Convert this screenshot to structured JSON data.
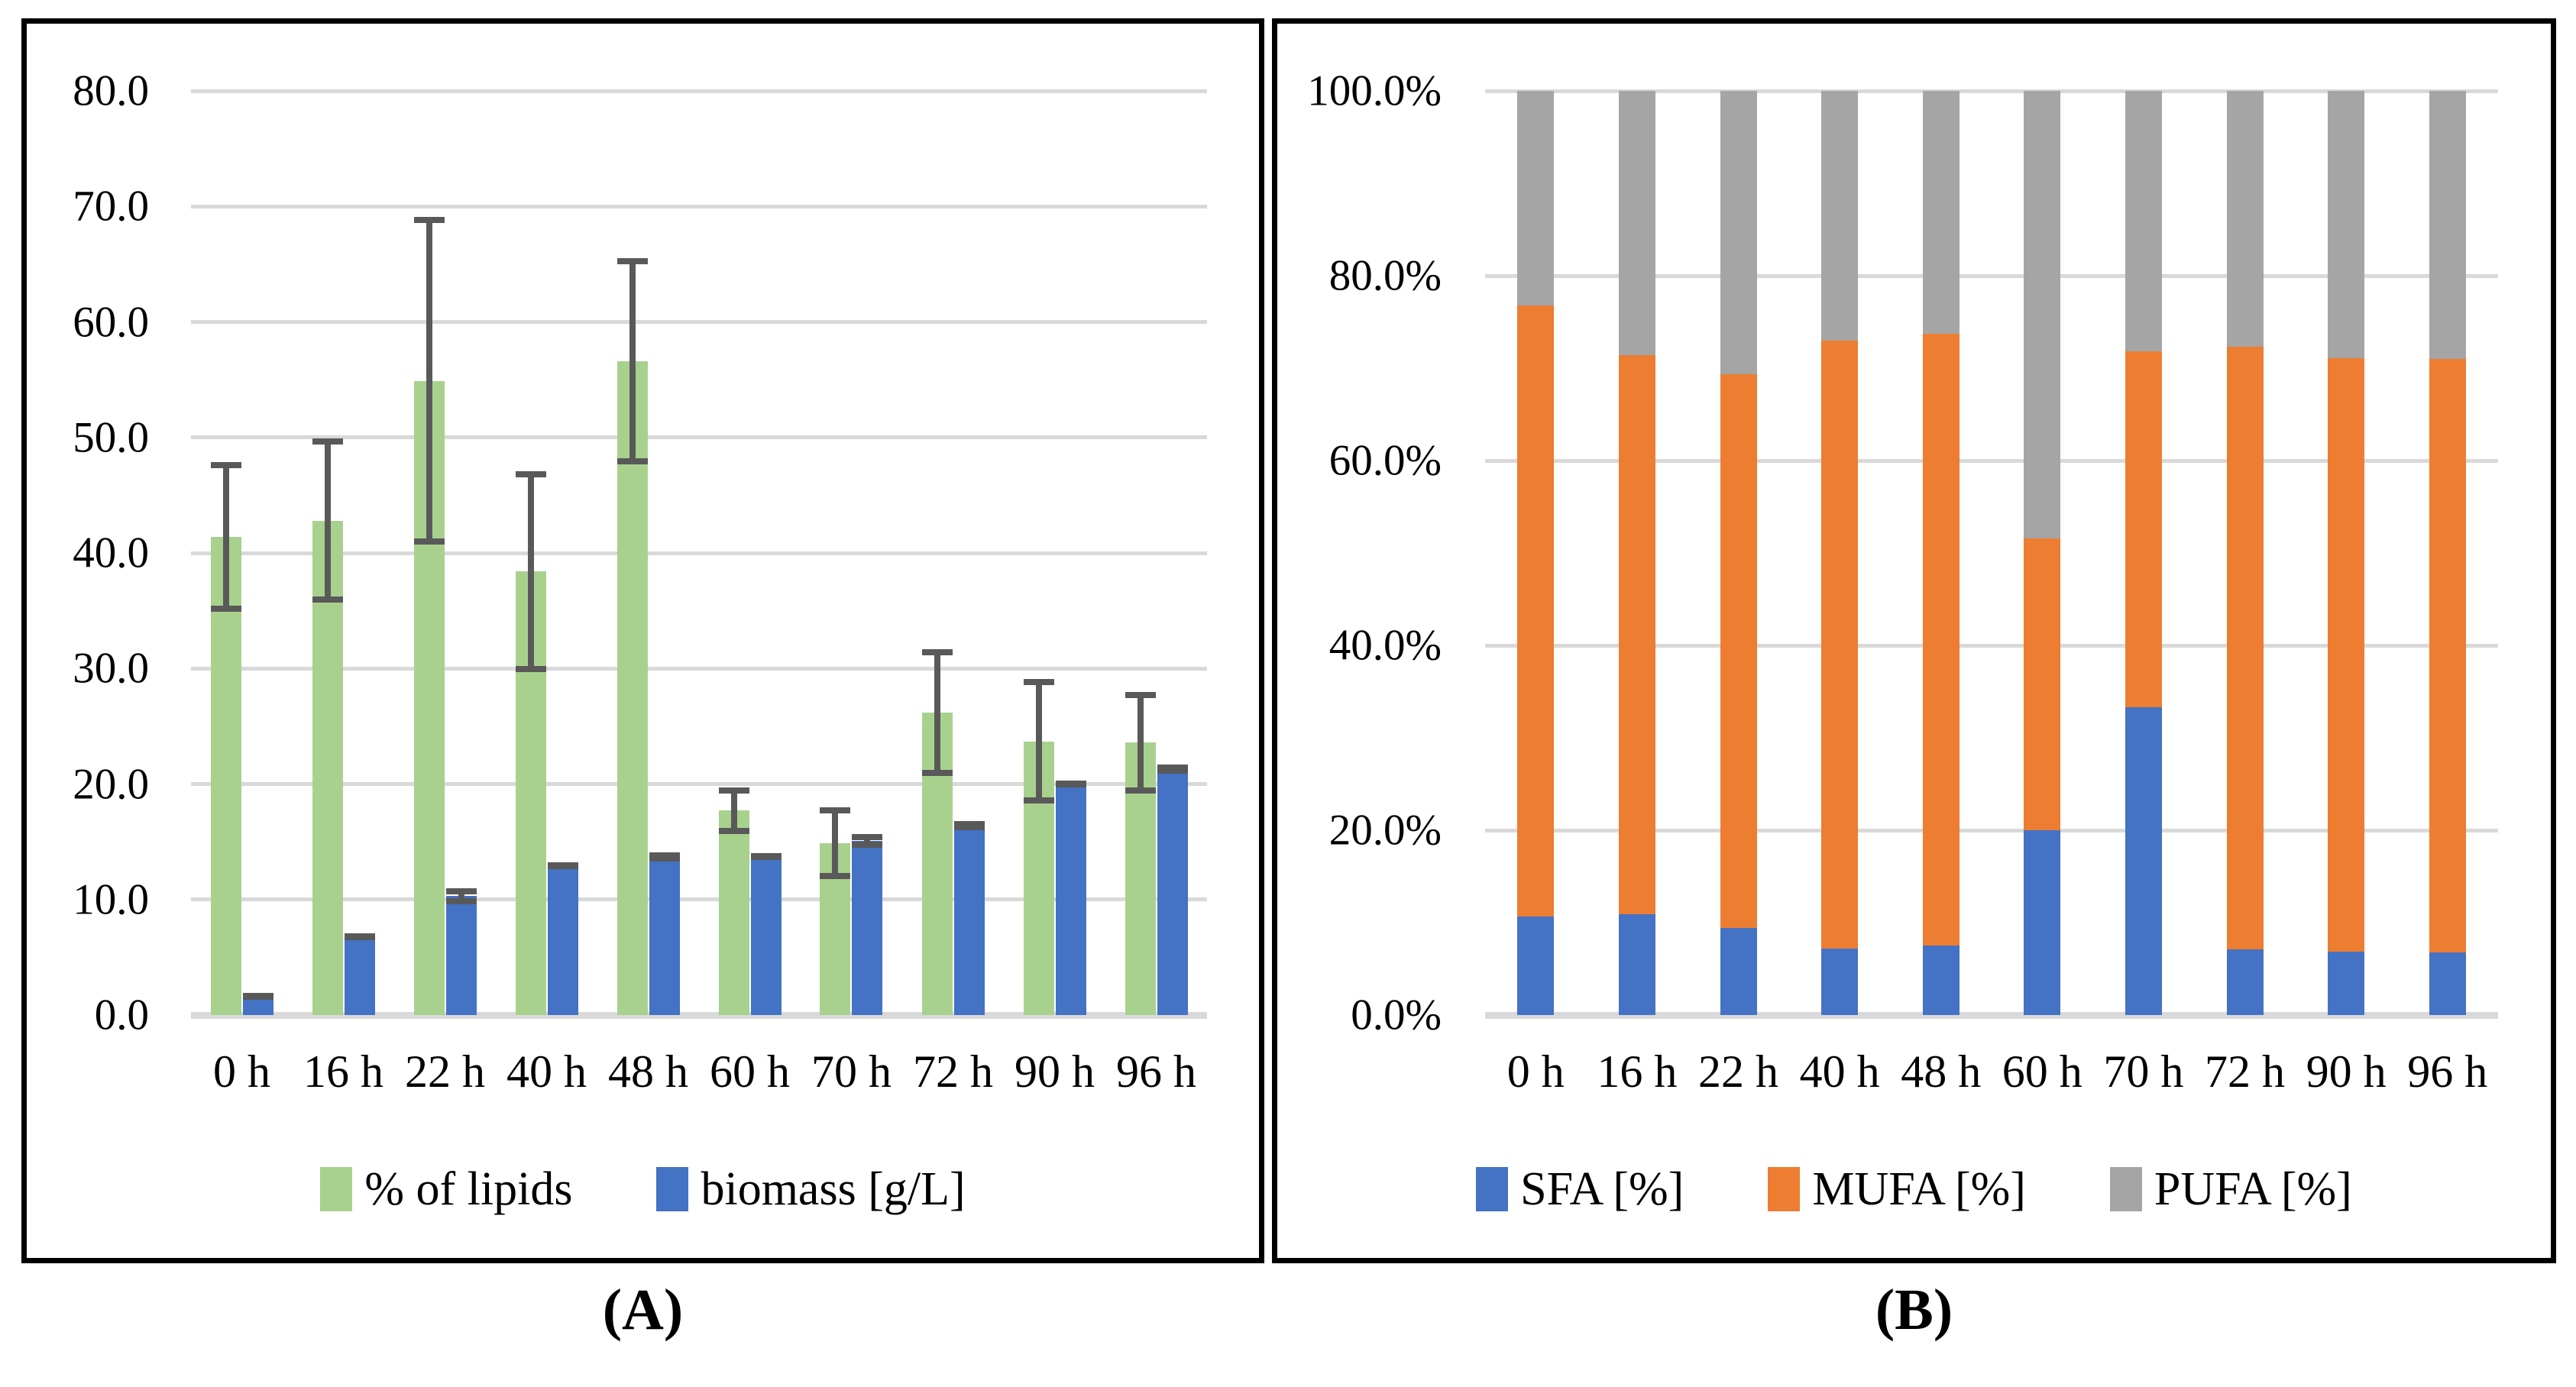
{
  "figure": {
    "panels": [
      {
        "id": "A",
        "caption": "(A)"
      },
      {
        "id": "B",
        "caption": "(B)"
      }
    ]
  },
  "colors": {
    "lipids_green": "#A9D18E",
    "biomass_blue": "#4472C4",
    "mufa_orange": "#ED7D31",
    "pufa_gray": "#A5A5A5",
    "error_bar": "#595959",
    "gridline": "#D9D9D9"
  },
  "chart_data": [
    {
      "panel": "A",
      "type": "bar",
      "title": "",
      "xlabel": "",
      "ylabel": "",
      "grid": true,
      "legend_position": "bottom",
      "ylim": [
        0,
        80
      ],
      "categories": [
        "0 h",
        "16 h",
        "22 h",
        "40 h",
        "48 h",
        "60 h",
        "70 h",
        "72 h",
        "90 h",
        "96 h"
      ],
      "yticks": [
        {
          "value": 0,
          "label": "0.0"
        },
        {
          "value": 10,
          "label": "10.0"
        },
        {
          "value": 20,
          "label": "20.0"
        },
        {
          "value": 30,
          "label": "30.0"
        },
        {
          "value": 40,
          "label": "40.0"
        },
        {
          "value": 50,
          "label": "50.0"
        },
        {
          "value": 60,
          "label": "60.0"
        },
        {
          "value": 70,
          "label": "70.0"
        },
        {
          "value": 80,
          "label": "80.0"
        }
      ],
      "series": [
        {
          "key": "lipids",
          "name": "% of lipids",
          "color": "#A9D18E",
          "values": [
            41.4,
            42.8,
            54.9,
            38.4,
            56.6,
            17.7,
            14.9,
            26.2,
            23.7,
            23.6
          ],
          "errors": [
            6.5,
            7.1,
            14.2,
            8.7,
            8.9,
            2.0,
            3.1,
            5.5,
            5.4,
            4.4
          ]
        },
        {
          "key": "biomass",
          "name": "biomass [g/L]",
          "color": "#4472C4",
          "values": [
            1.6,
            6.8,
            10.3,
            12.9,
            13.7,
            13.7,
            15.1,
            16.4,
            20.0,
            21.3
          ],
          "errors": [
            0.3,
            0.3,
            0.7,
            0.3,
            0.4,
            0.3,
            0.6,
            0.4,
            0.3,
            0.4
          ]
        }
      ]
    },
    {
      "panel": "B",
      "type": "stacked-bar",
      "title": "",
      "xlabel": "",
      "ylabel": "",
      "grid": true,
      "legend_position": "bottom",
      "ylim": [
        0,
        100
      ],
      "categories": [
        "0 h",
        "16 h",
        "22 h",
        "40 h",
        "48 h",
        "60 h",
        "70 h",
        "72 h",
        "90 h",
        "96 h"
      ],
      "yticks": [
        {
          "value": 0,
          "label": "0.0%"
        },
        {
          "value": 20,
          "label": "20.0%"
        },
        {
          "value": 40,
          "label": "40.0%"
        },
        {
          "value": 60,
          "label": "60.0%"
        },
        {
          "value": 80,
          "label": "80.0%"
        },
        {
          "value": 100,
          "label": "100.0%"
        }
      ],
      "series": [
        {
          "key": "sfa",
          "name": "SFA [%]",
          "color": "#4472C4",
          "values": [
            10.7,
            10.9,
            9.4,
            7.2,
            7.5,
            20.0,
            33.3,
            7.1,
            6.9,
            6.8
          ]
        },
        {
          "key": "mufa",
          "name": "MUFA [%]",
          "color": "#ED7D31",
          "values": [
            66.1,
            60.5,
            59.9,
            65.8,
            66.2,
            31.6,
            38.5,
            65.2,
            64.2,
            64.2
          ]
        },
        {
          "key": "pufa",
          "name": "PUFA [%]",
          "color": "#A5A5A5",
          "values": [
            23.2,
            28.6,
            30.7,
            27.0,
            26.3,
            48.4,
            28.2,
            27.7,
            28.9,
            29.0
          ]
        }
      ]
    }
  ]
}
